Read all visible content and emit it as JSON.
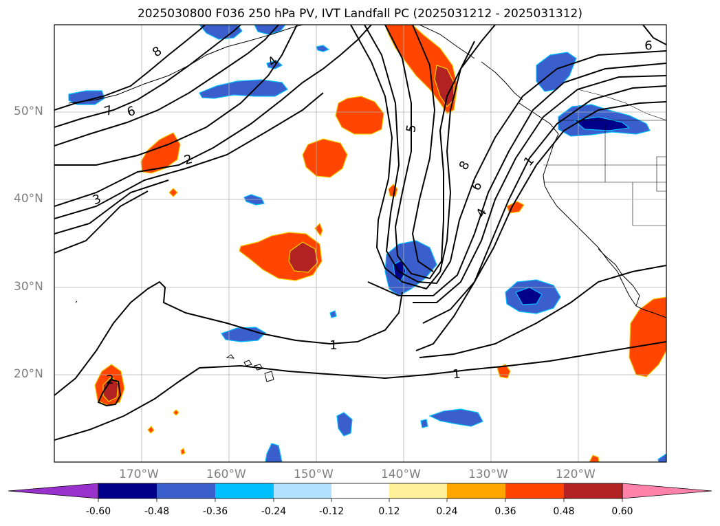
{
  "title": "2025030800 F036 250 hPa PV, IVT Landfall PC (2025031212 - 2025031312)",
  "map": {
    "lon_labels": [
      "170°W",
      "160°W",
      "150°W",
      "140°W",
      "130°W",
      "120°W"
    ],
    "lat_labels": [
      "50°N",
      "40°N",
      "30°N",
      "20°N"
    ],
    "contour_labels": [
      "8",
      "7",
      "6",
      "4",
      "2",
      "3",
      "5",
      "8",
      "6",
      "4",
      "1",
      "1",
      "1",
      "2",
      "6"
    ]
  },
  "colorbar": {
    "ticks": [
      "-0.60",
      "-0.48",
      "-0.36",
      "-0.24",
      "-0.12",
      "0.12",
      "0.24",
      "0.36",
      "0.48",
      "0.60"
    ],
    "colors": [
      "#9932cc",
      "#00008b",
      "#3a5fcd",
      "#00bfff",
      "#b0e2ff",
      "#ffffff",
      "#fff09a",
      "#ffa500",
      "#ff4500",
      "#b22222",
      "#ff82ab"
    ]
  }
}
